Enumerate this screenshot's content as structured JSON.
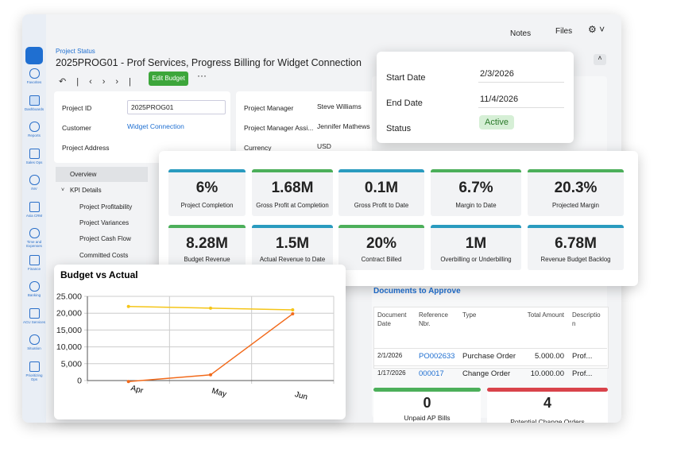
{
  "sidebar": [
    "Favorites",
    "Dashboards",
    "Reports",
    "Sales Ops",
    "INV",
    "Asia CRM",
    "Time and Expenses",
    "Finance",
    "Banking",
    "ACU Services",
    "Situation",
    "Prioritizing Ops"
  ],
  "header": {
    "breadcrumb": "Project Status",
    "title": "2025PROG01 - Prof Services, Progress Billing for Widget Connection",
    "edit_button": "Edit Budget",
    "notes": "Notes",
    "files": "Files"
  },
  "summary": [
    {
      "label": "Project ID",
      "value": "2025PROG01"
    },
    {
      "label": "Customer",
      "value": "Widget Connection"
    },
    {
      "label": "Project Address"
    }
  ],
  "managers": [
    {
      "label": "Project Manager",
      "value": "Steve Williams"
    },
    {
      "label": "Project Manager Assi...",
      "value": "Jennifer Mathews"
    },
    {
      "label": "Currency",
      "value": "USD"
    }
  ],
  "dates": [
    {
      "label": "Start Date",
      "value": "2/3/2026"
    },
    {
      "label": "End Date",
      "value": "11/4/2026"
    },
    {
      "label": "Status",
      "value": "Active"
    }
  ],
  "nav": [
    "Overview",
    "KPI Details",
    "Project Profitability",
    "Project Variances",
    "Project Cash Flow",
    "Committed Costs"
  ],
  "kpis": [
    {
      "value": "6%",
      "label": "Project Completion",
      "color": "#2a9bbf"
    },
    {
      "value": "1.68M",
      "label": "Gross Profit at Completion",
      "color": "#4caf5a"
    },
    {
      "value": "0.1M",
      "label": "Gross Profit to Date",
      "color": "#2a9bbf"
    },
    {
      "value": "6.7%",
      "label": "Margin to Date",
      "color": "#4caf5a"
    },
    {
      "value": "20.3%",
      "label": "Projected Margin",
      "color": "#4caf5a"
    },
    {
      "value": "8.28M",
      "label": "Budget Revenue",
      "color": "#4caf5a"
    },
    {
      "value": "1.5M",
      "label": "Actual Revenue to Date",
      "color": "#2a9bbf"
    },
    {
      "value": "20%",
      "label": "Contract Billed",
      "color": "#4caf5a"
    },
    {
      "value": "1M",
      "label": "Overbilling or Underbilling",
      "color": "#2a9bbf"
    },
    {
      "value": "6.78M",
      "label": "Revenue Budget Backlog",
      "color": "#2a9bbf"
    }
  ],
  "documents": {
    "title": "Documents to Approve",
    "columns": [
      "Document Date",
      "Reference Nbr.",
      "Type",
      "Total Amount",
      "Description"
    ],
    "rows": [
      [
        "2/1/2026",
        "PO002633",
        "Purchase Order",
        "5.000.00",
        "Prof..."
      ],
      [
        "1/17/2026",
        "000017",
        "Change Order",
        "10.000.00",
        "Prof..."
      ]
    ]
  },
  "counters": [
    {
      "value": "0",
      "label": "Unpaid AP Bills",
      "color": "#4caf5a"
    },
    {
      "value": "4",
      "label": "Potential Change Orders",
      "color": "#d9434b"
    }
  ],
  "chart_data": {
    "type": "line",
    "title": "Budget vs Actual",
    "categories": [
      "Apr",
      "May",
      "Jun"
    ],
    "series": [
      {
        "color": "#f5c518",
        "values": [
          22000,
          21500,
          21000
        ]
      },
      {
        "color": "#f26a1b",
        "values": [
          -300,
          1700,
          19800
        ]
      }
    ],
    "ylim": [
      0,
      25000
    ],
    "yticks": [
      0,
      {
        "value": 5000,
        "label": "5,000"
      },
      {
        "value": 10000,
        "label": "10,000"
      },
      {
        "value": 15000,
        "label": "15,000"
      },
      {
        "value": 20000,
        "label": "20,000"
      },
      {
        "value": 25000,
        "label": "25.000"
      }
    ],
    "grid": true
  }
}
